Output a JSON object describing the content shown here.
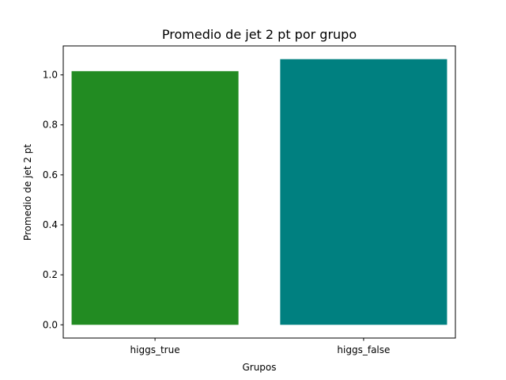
{
  "chart_data": {
    "type": "bar",
    "title": "Promedio de jet 2 pt por grupo",
    "xlabel": "Grupos",
    "ylabel": "Promedio de jet 2 pt",
    "categories": [
      "higgs_true",
      "higgs_false"
    ],
    "values": [
      1.015,
      1.063
    ],
    "colors": [
      "#228b22",
      "#008080"
    ],
    "ylim": [
      -0.053,
      1.116
    ],
    "yticks": [
      0.0,
      0.2,
      0.4,
      0.6,
      0.8,
      1.0
    ],
    "ytick_labels": [
      "0.0",
      "0.2",
      "0.4",
      "0.6",
      "0.8",
      "1.0"
    ],
    "grid": false,
    "legend": "none"
  }
}
